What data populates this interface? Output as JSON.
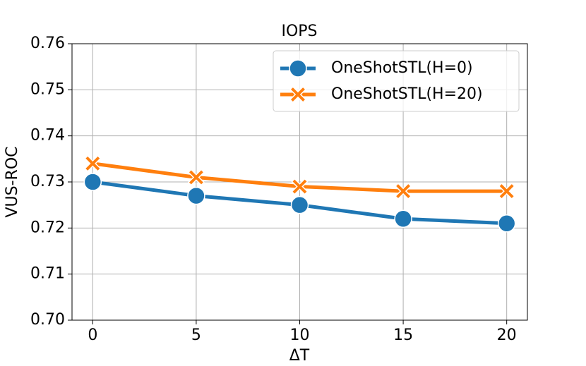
{
  "chart_data": {
    "type": "line",
    "title": "IOPS",
    "x_label": "ΔT",
    "y_label": "VUS-ROC",
    "x": [
      0,
      5,
      10,
      15,
      20
    ],
    "series": [
      {
        "name": "OneShotSTL(H=0)",
        "color": "#1f77b4",
        "marker": "circle",
        "values": [
          0.73,
          0.727,
          0.725,
          0.722,
          0.721
        ]
      },
      {
        "name": "OneShotSTL(H=20)",
        "color": "#ff7f0e",
        "marker": "x",
        "values": [
          0.734,
          0.731,
          0.729,
          0.728,
          0.728
        ]
      }
    ],
    "xlim": [
      -1,
      21
    ],
    "xticks": [
      0,
      5,
      10,
      15,
      20
    ],
    "ylim": [
      0.7,
      0.76
    ],
    "yticks": [
      {
        "value": 0.7,
        "label": "0.70"
      },
      0.71,
      0.72,
      0.73,
      0.74,
      0.75,
      0.76
    ],
    "grid": true,
    "legend": "upper right"
  }
}
